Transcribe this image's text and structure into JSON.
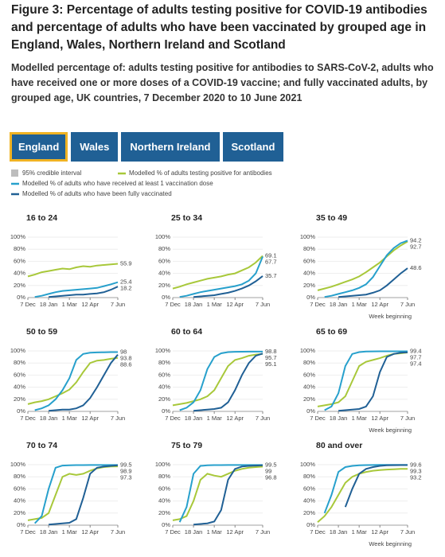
{
  "header": {
    "title": "Figure 3: Percentage of adults testing positive for COVID-19 antibodies and percentage of adults who have been vaccinated by grouped age in England, Wales, Northern Ireland and Scotland",
    "subtitle": "Modelled percentage of: adults testing positive for antibodies to SARS-CoV-2, adults who have received one or more doses of a COVID-19 vaccine; and fully vaccinated adults, by grouped age, UK countries, 7 December 2020 to 10 June 2021"
  },
  "tabs": [
    "England",
    "Wales",
    "Northern Ireland",
    "Scotland"
  ],
  "chart_data": {
    "type": "line",
    "interval_legend": {
      "name": "95% credible interval",
      "color": "#bdbdbd"
    },
    "series": [
      {
        "name": "Modelled % of adults testing positive for antibodies",
        "color": "#a8c83a"
      },
      {
        "name": "Modelled % of adults who have received at least 1 vaccination dose",
        "color": "#27a0cc"
      },
      {
        "name": "Modelled % of adults who have been fully vaccinated",
        "color": "#206095"
      }
    ],
    "x_label": "Week beginning",
    "categories": [
      "7 Dec",
      null,
      null,
      "18 Jan",
      null,
      null,
      "1 Mar",
      null,
      null,
      "12 Apr",
      null,
      null,
      null,
      "7 Jun"
    ],
    "ylim": [
      0,
      100
    ],
    "yticks": [
      {
        "value": 0,
        "label": "0%"
      },
      {
        "value": 20,
        "label": "20%"
      },
      {
        "value": 40,
        "label": "40%"
      },
      {
        "value": 60,
        "label": "60%"
      },
      {
        "value": 80,
        "label": "80%"
      },
      {
        "value": 100,
        "label": "100%"
      }
    ],
    "panels": [
      {
        "title": "16 to 24",
        "values": [
          [
            35,
            38,
            42,
            44,
            46,
            48,
            47,
            50,
            52,
            51,
            53,
            54,
            55,
            55.9
          ],
          [
            null,
            1,
            3,
            6,
            9,
            11,
            12,
            13,
            14,
            15,
            16,
            19,
            22,
            25.4
          ],
          [
            null,
            null,
            null,
            1,
            2,
            3,
            4,
            5,
            5,
            6,
            7,
            9,
            13,
            18.2
          ]
        ]
      },
      {
        "title": "25 to 34",
        "values": [
          [
            15,
            18,
            22,
            25,
            28,
            31,
            33,
            35,
            38,
            40,
            45,
            50,
            58,
            69.1
          ],
          [
            null,
            1,
            3,
            6,
            9,
            11,
            13,
            15,
            17,
            19,
            22,
            28,
            40,
            67.7
          ],
          [
            null,
            null,
            null,
            1,
            2,
            3,
            4,
            6,
            8,
            11,
            15,
            20,
            27,
            35.7
          ]
        ]
      },
      {
        "title": "35 to 49",
        "values": [
          [
            12,
            15,
            18,
            22,
            26,
            30,
            35,
            42,
            50,
            58,
            68,
            78,
            86,
            92.7
          ],
          [
            null,
            1,
            3,
            6,
            9,
            12,
            16,
            22,
            34,
            52,
            70,
            82,
            90,
            94.2
          ],
          [
            null,
            null,
            null,
            1,
            2,
            3,
            4,
            5,
            8,
            12,
            20,
            30,
            40,
            48.6
          ]
        ]
      },
      {
        "title": "50 to 59",
        "values": [
          [
            12,
            15,
            17,
            20,
            25,
            30,
            36,
            48,
            65,
            80,
            84,
            85,
            87,
            88.6
          ],
          [
            null,
            2,
            5,
            10,
            20,
            35,
            55,
            85,
            95,
            97,
            97.5,
            97.8,
            98,
            98.0
          ],
          [
            null,
            null,
            null,
            1,
            2,
            3,
            3,
            5,
            10,
            22,
            40,
            60,
            80,
            93.8
          ]
        ]
      },
      {
        "title": "60 to 64",
        "values": [
          [
            10,
            12,
            14,
            17,
            20,
            25,
            35,
            55,
            75,
            85,
            88,
            92,
            94,
            95.1
          ],
          [
            null,
            2,
            6,
            15,
            35,
            70,
            90,
            96,
            98,
            98.5,
            98.7,
            98.8,
            98.8,
            98.8
          ],
          [
            null,
            null,
            null,
            1,
            2,
            3,
            4,
            6,
            15,
            35,
            60,
            80,
            92,
            95.7
          ]
        ]
      },
      {
        "title": "65 to 69",
        "values": [
          [
            8,
            10,
            12,
            15,
            25,
            50,
            75,
            82,
            85,
            88,
            92,
            95,
            96,
            97.4
          ],
          [
            null,
            2,
            8,
            30,
            75,
            95,
            98,
            99,
            99.2,
            99.3,
            99.4,
            99.4,
            99.4,
            99.4
          ],
          [
            null,
            null,
            null,
            1,
            2,
            3,
            4,
            8,
            25,
            65,
            90,
            95,
            97,
            97.7
          ]
        ]
      },
      {
        "title": "70 to 74",
        "values": [
          [
            8,
            10,
            12,
            20,
            50,
            80,
            85,
            83,
            85,
            90,
            94,
            96,
            97,
            97.3
          ],
          [
            null,
            3,
            15,
            60,
            95,
            98.5,
            99,
            99.3,
            99.4,
            99.5,
            99.5,
            99.5,
            99.5,
            99.5
          ],
          [
            null,
            null,
            null,
            1,
            2,
            3,
            4,
            10,
            45,
            85,
            95,
            97,
            98,
            98.9
          ]
        ]
      },
      {
        "title": "75 to 79",
        "values": [
          [
            8,
            10,
            15,
            40,
            75,
            85,
            82,
            80,
            85,
            90,
            93,
            95,
            96,
            96.8
          ],
          [
            null,
            5,
            30,
            85,
            98,
            99,
            99.3,
            99.4,
            99.5,
            99.5,
            99.5,
            99.5,
            99.5,
            99.5
          ],
          [
            null,
            null,
            null,
            1,
            2,
            3,
            6,
            25,
            75,
            93,
            97,
            98,
            98.5,
            99.0
          ]
        ]
      },
      {
        "title": "80 and over",
        "values": [
          [
            5,
            15,
            30,
            50,
            70,
            80,
            85,
            88,
            90,
            91,
            92,
            92.5,
            93,
            93.2
          ],
          [
            null,
            20,
            50,
            88,
            96,
            98,
            99,
            99.3,
            99.5,
            99.6,
            99.6,
            99.6,
            99.6,
            99.6
          ],
          [
            null,
            null,
            null,
            null,
            30,
            60,
            85,
            93,
            96,
            98,
            99,
            99.2,
            99.3,
            99.3
          ]
        ]
      }
    ]
  }
}
